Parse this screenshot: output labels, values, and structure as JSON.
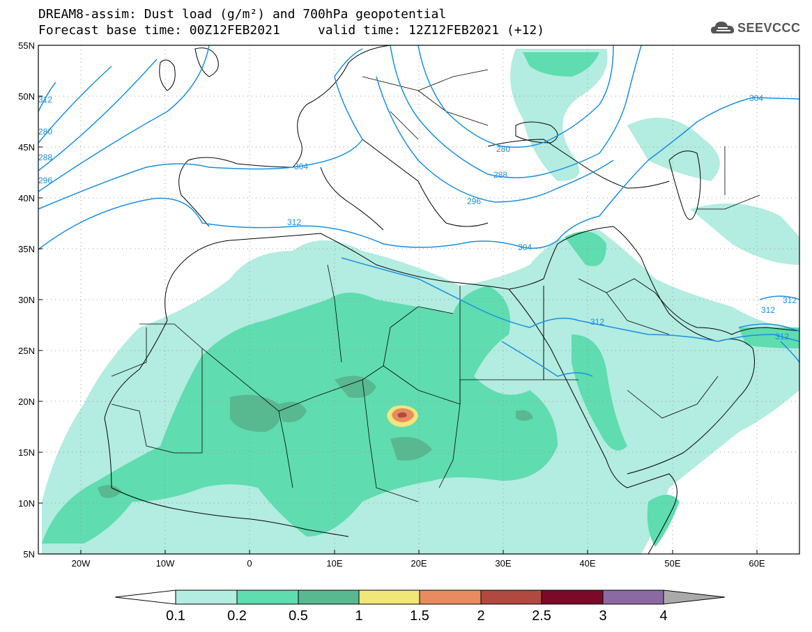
{
  "header": {
    "title_line1": "DREAM8-assim: Dust load (g/m²) and 700hPa geopotential",
    "base_time_label": "Forecast base time: 00Z12FEB2021",
    "valid_time_label": "valid time: 12Z12FEB2021 (+12)"
  },
  "logo": {
    "text": "SEEVCCC",
    "icon": "cloud-logo-icon"
  },
  "map": {
    "lat_labels": [
      "55N",
      "50N",
      "45N",
      "40N",
      "35N",
      "30N",
      "25N",
      "20N",
      "15N",
      "10N",
      "5N"
    ],
    "lon_labels": [
      "20W",
      "10W",
      "0",
      "10E",
      "20E",
      "30E",
      "40E",
      "50E",
      "60E"
    ],
    "contour_labels": [
      "312",
      "280",
      "288",
      "296",
      "304",
      "304",
      "312",
      "304",
      "312",
      "312",
      "312",
      "312",
      "280",
      "288",
      "296"
    ]
  },
  "colorbar": {
    "tick_labels": [
      "0.1",
      "0.2",
      "0.5",
      "1",
      "1.5",
      "2",
      "2.5",
      "3",
      "4"
    ],
    "colors": [
      "#ffffff",
      "#b3ece0",
      "#5fdcb0",
      "#58b890",
      "#f0e67a",
      "#e88c60",
      "#b04a40",
      "#7a0a28",
      "#8a6aa0",
      "#aaaaaa"
    ]
  }
}
